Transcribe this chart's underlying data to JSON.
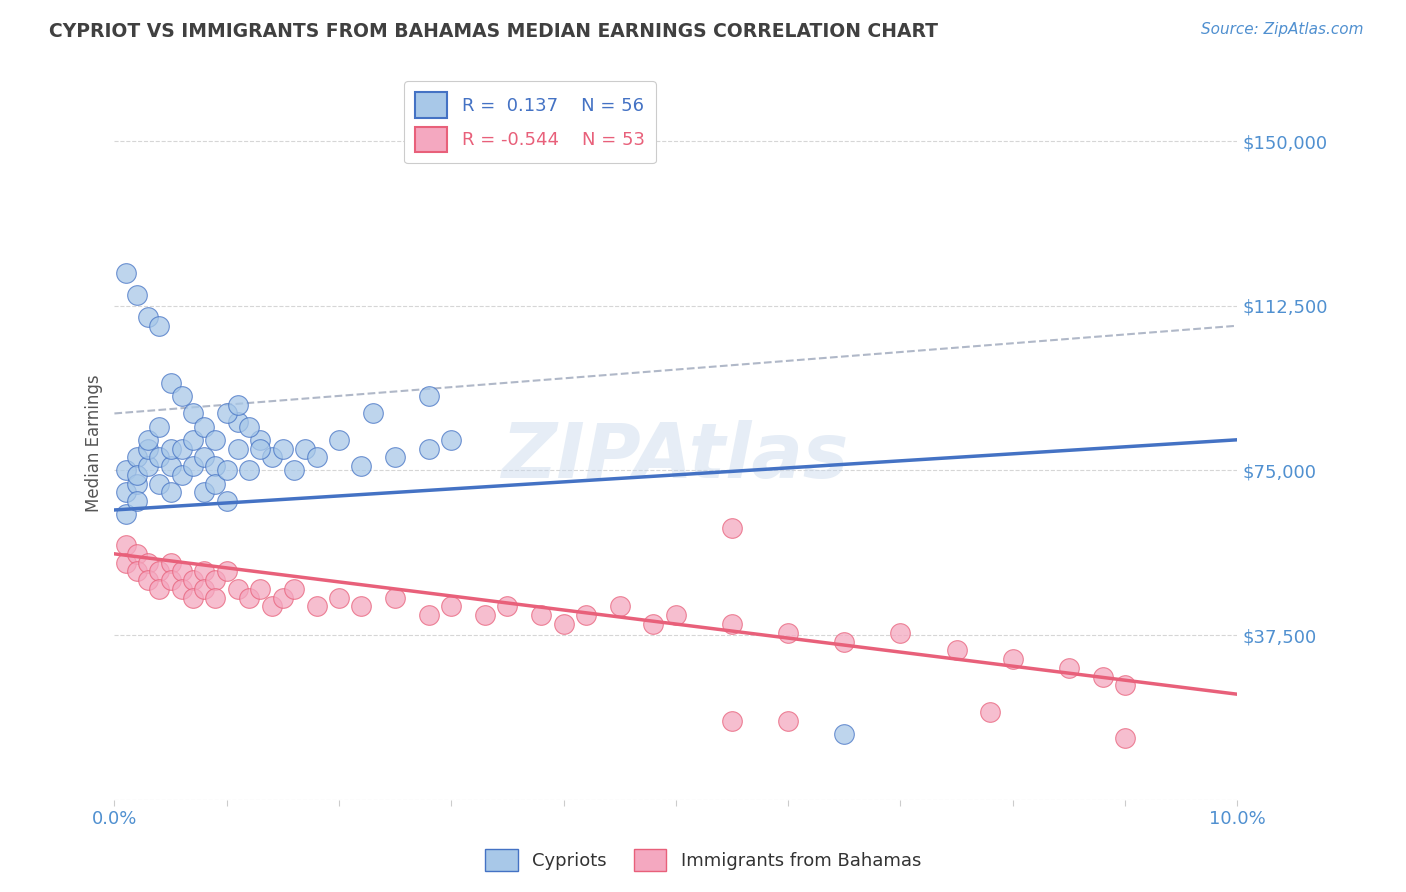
{
  "title": "CYPRIOT VS IMMIGRANTS FROM BAHAMAS MEDIAN EARNINGS CORRELATION CHART",
  "source": "Source: ZipAtlas.com",
  "ylabel": "Median Earnings",
  "xlim": [
    0.0,
    0.1
  ],
  "ylim": [
    0,
    162500
  ],
  "yticks": [
    0,
    37500,
    75000,
    112500,
    150000
  ],
  "ytick_labels": [
    "",
    "$37,500",
    "$75,000",
    "$112,500",
    "$150,000"
  ],
  "legend_r1": "R =  0.137",
  "legend_n1": "N = 56",
  "legend_r2": "R = -0.544",
  "legend_n2": "N = 53",
  "cypriot_color": "#a8c8e8",
  "bahamas_color": "#f4a8c0",
  "blue_line_color": "#4472c4",
  "pink_line_color": "#e8607a",
  "dashed_line_color": "#b0b8c8",
  "title_color": "#404040",
  "source_color": "#5090d0",
  "ytick_color": "#5090d0",
  "xtick_color": "#5090d0",
  "watermark": "ZIPAtlas",
  "blue_line_x0": 0.0,
  "blue_line_y0": 66000,
  "blue_line_x1": 0.1,
  "blue_line_y1": 82000,
  "pink_line_x0": 0.0,
  "pink_line_y0": 56000,
  "pink_line_x1": 0.1,
  "pink_line_y1": 24000,
  "dashed_line_x0": 0.0,
  "dashed_line_y0": 88000,
  "dashed_line_x1": 0.1,
  "dashed_line_y1": 108000,
  "cypriot_x": [
    0.001,
    0.001,
    0.001,
    0.002,
    0.002,
    0.002,
    0.002,
    0.003,
    0.003,
    0.003,
    0.004,
    0.004,
    0.004,
    0.005,
    0.005,
    0.005,
    0.006,
    0.006,
    0.007,
    0.007,
    0.008,
    0.008,
    0.009,
    0.009,
    0.01,
    0.01,
    0.011,
    0.011,
    0.012,
    0.013,
    0.014,
    0.015,
    0.016,
    0.017,
    0.018,
    0.02,
    0.022,
    0.025,
    0.028,
    0.03,
    0.001,
    0.002,
    0.003,
    0.004,
    0.005,
    0.006,
    0.007,
    0.008,
    0.009,
    0.01,
    0.011,
    0.012,
    0.013,
    0.023,
    0.028,
    0.065
  ],
  "cypriot_y": [
    65000,
    70000,
    75000,
    72000,
    78000,
    68000,
    74000,
    76000,
    80000,
    82000,
    72000,
    78000,
    85000,
    70000,
    76000,
    80000,
    74000,
    80000,
    76000,
    82000,
    70000,
    78000,
    76000,
    72000,
    68000,
    75000,
    80000,
    86000,
    75000,
    82000,
    78000,
    80000,
    75000,
    80000,
    78000,
    82000,
    76000,
    78000,
    80000,
    82000,
    120000,
    115000,
    110000,
    108000,
    95000,
    92000,
    88000,
    85000,
    82000,
    88000,
    90000,
    85000,
    80000,
    88000,
    92000,
    15000
  ],
  "bahamas_x": [
    0.001,
    0.001,
    0.002,
    0.002,
    0.003,
    0.003,
    0.004,
    0.004,
    0.005,
    0.005,
    0.006,
    0.006,
    0.007,
    0.007,
    0.008,
    0.008,
    0.009,
    0.009,
    0.01,
    0.011,
    0.012,
    0.013,
    0.014,
    0.015,
    0.016,
    0.018,
    0.02,
    0.022,
    0.025,
    0.028,
    0.03,
    0.033,
    0.035,
    0.038,
    0.04,
    0.042,
    0.045,
    0.048,
    0.05,
    0.055,
    0.06,
    0.065,
    0.07,
    0.075,
    0.08,
    0.085,
    0.088,
    0.09,
    0.055,
    0.055,
    0.06,
    0.078,
    0.09
  ],
  "bahamas_y": [
    58000,
    54000,
    56000,
    52000,
    54000,
    50000,
    52000,
    48000,
    54000,
    50000,
    52000,
    48000,
    50000,
    46000,
    52000,
    48000,
    50000,
    46000,
    52000,
    48000,
    46000,
    48000,
    44000,
    46000,
    48000,
    44000,
    46000,
    44000,
    46000,
    42000,
    44000,
    42000,
    44000,
    42000,
    40000,
    42000,
    44000,
    40000,
    42000,
    40000,
    38000,
    36000,
    38000,
    34000,
    32000,
    30000,
    28000,
    26000,
    62000,
    18000,
    18000,
    20000,
    14000
  ]
}
